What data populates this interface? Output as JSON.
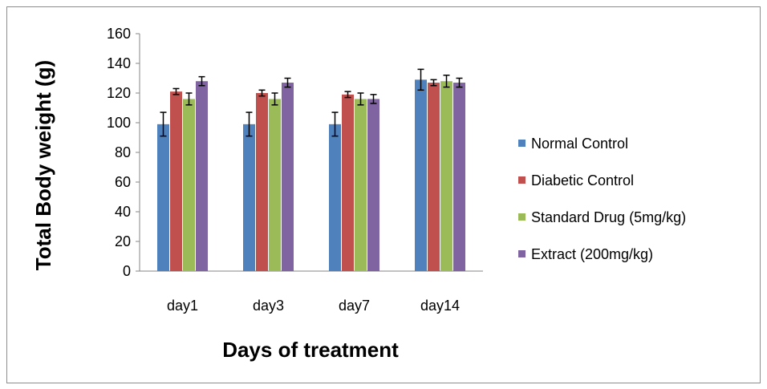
{
  "chart_data": {
    "type": "bar",
    "title": "",
    "xlabel": "Days of treatment",
    "ylabel": "Total Body weight (g)",
    "ylim": [
      0,
      160
    ],
    "yticks": [
      "0",
      "20",
      "40",
      "60",
      "80",
      "100",
      "120",
      "140",
      "160"
    ],
    "categories": [
      "day1",
      "day3",
      "day7",
      "day14"
    ],
    "legend_position": "right",
    "grid": false,
    "error_bars": true,
    "series": [
      {
        "name": "Normal Control",
        "color": "#4f81bd",
        "values": [
          99,
          99,
          99,
          129
        ],
        "errors": [
          8,
          8,
          8,
          7
        ]
      },
      {
        "name": "Diabetic Control",
        "color": "#c0504d",
        "values": [
          121,
          120,
          119,
          127
        ],
        "errors": [
          2,
          2,
          2,
          2
        ]
      },
      {
        "name": "Standard Drug (5mg/kg)",
        "color": "#9bbb59",
        "values": [
          116,
          116,
          116,
          128
        ],
        "errors": [
          4,
          4,
          4,
          4
        ]
      },
      {
        "name": "Extract (200mg/kg)",
        "color": "#8064a2",
        "values": [
          128,
          127,
          116,
          127
        ],
        "errors": [
          3,
          3,
          3,
          3
        ]
      }
    ]
  }
}
